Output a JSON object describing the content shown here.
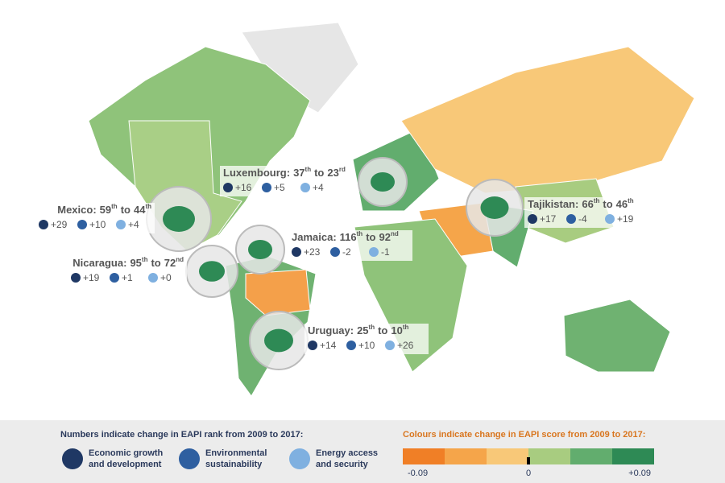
{
  "connector": "to",
  "callouts": [
    {
      "name": "Luxembourg:",
      "from": "37",
      "from_suffix": "th",
      "to": "23",
      "to_suffix": "rd",
      "economic": "+16",
      "environmental": "+5",
      "energy": "+4"
    },
    {
      "name": "Mexico:",
      "from": "59",
      "from_suffix": "th",
      "to": "44",
      "to_suffix": "th",
      "economic": "+29",
      "environmental": "+10",
      "energy": "+4"
    },
    {
      "name": "Jamaica:",
      "from": "116",
      "from_suffix": "th",
      "to": "92",
      "to_suffix": "nd",
      "economic": "+23",
      "environmental": "-2",
      "energy": "-1"
    },
    {
      "name": "Nicaragua:",
      "from": "95",
      "from_suffix": "th",
      "to": "72",
      "to_suffix": "nd",
      "economic": "+19",
      "environmental": "+1",
      "energy": "+0"
    },
    {
      "name": "Tajikistan:",
      "from": "66",
      "from_suffix": "th",
      "to": "46",
      "to_suffix": "th",
      "economic": "+17",
      "environmental": "-4",
      "energy": "+19"
    },
    {
      "name": "Uruguay:",
      "from": "25",
      "from_suffix": "th",
      "to": "10",
      "to_suffix": "th",
      "economic": "+14",
      "environmental": "+10",
      "energy": "+26"
    }
  ],
  "legend": {
    "rank_title": "Numbers indicate change in EAPI rank from 2009 to 2017:",
    "categories": [
      {
        "lines": [
          "Economic growth",
          "and development"
        ]
      },
      {
        "lines": [
          "Environmental",
          "sustainability"
        ]
      },
      {
        "lines": [
          "Energy access",
          "and security"
        ]
      }
    ],
    "score_title": "Colours indicate change in EAPI score from 2009 to 2017:",
    "scale_labels": [
      "-0.09",
      "0",
      "+0.09"
    ]
  }
}
